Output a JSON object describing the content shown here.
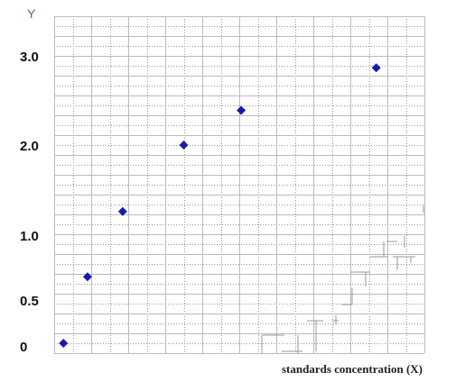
{
  "chart_data": {
    "type": "scatter",
    "title": "",
    "ylabel": "Y",
    "xlabel": "standards concentration (X)",
    "y_tick_labels": [
      {
        "label": "3.0",
        "value": 3.0
      },
      {
        "label": "2.0",
        "value": 2.0
      },
      {
        "label": "1.0",
        "value": 1.0
      },
      {
        "label": "0.5",
        "value": 0.5
      },
      {
        "label": "0",
        "value": 0
      }
    ],
    "ylim": [
      0,
      3.4
    ],
    "xlim": [
      0,
      10
    ],
    "grid": true,
    "colors": {
      "marker": "#1a1aaa",
      "grid": "#bbbbbb",
      "grid_minor": "#999999"
    },
    "points": [
      {
        "x": 0.25,
        "y": 0.1
      },
      {
        "x": 0.9,
        "y": 0.77
      },
      {
        "x": 1.85,
        "y": 1.43
      },
      {
        "x": 3.5,
        "y": 2.1
      },
      {
        "x": 5.05,
        "y": 2.45
      },
      {
        "x": 8.7,
        "y": 2.88
      }
    ]
  }
}
